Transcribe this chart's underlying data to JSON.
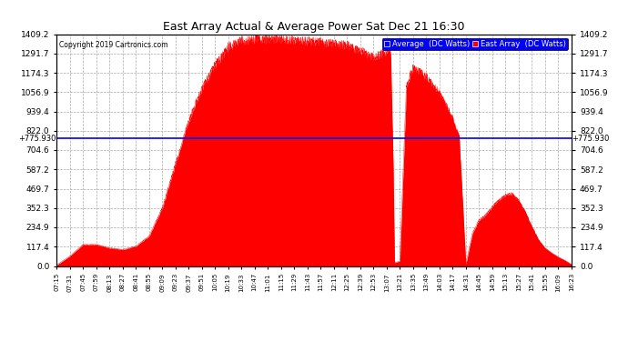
{
  "title": "East Array Actual & Average Power Sat Dec 21 16:30",
  "copyright": "Copyright 2019 Cartronics.com",
  "avg_value": 775.93,
  "avg_label": "+775.930",
  "y_ticks": [
    0.0,
    117.4,
    234.9,
    352.3,
    469.7,
    587.2,
    704.6,
    822.0,
    939.4,
    1056.9,
    1174.3,
    1291.7,
    1409.2
  ],
  "ymax": 1409.2,
  "legend_avg_label": "Average  (DC Watts)",
  "legend_east_label": "East Array  (DC Watts)",
  "legend_avg_color": "#0000ff",
  "legend_east_color": "#ff0000",
  "bg_color": "#ffffff",
  "plot_bg_color": "#ffffff",
  "grid_color": "#aaaaaa",
  "fill_color": "#ff0000",
  "line_color": "#ff0000",
  "avg_line_color": "#0000ff",
  "x_labels": [
    "07:15",
    "07:31",
    "07:45",
    "07:59",
    "08:13",
    "08:27",
    "08:41",
    "08:55",
    "09:09",
    "09:23",
    "09:37",
    "09:51",
    "10:05",
    "10:19",
    "10:33",
    "10:47",
    "11:01",
    "11:15",
    "11:29",
    "11:43",
    "11:57",
    "12:11",
    "12:25",
    "12:39",
    "12:53",
    "13:07",
    "13:21",
    "13:35",
    "13:49",
    "14:03",
    "14:17",
    "14:31",
    "14:45",
    "14:59",
    "15:13",
    "15:27",
    "15:41",
    "15:55",
    "16:09",
    "16:23"
  ],
  "curve_pts": [
    [
      0,
      5
    ],
    [
      1,
      60
    ],
    [
      2,
      130
    ],
    [
      3,
      130
    ],
    [
      4,
      110
    ],
    [
      5,
      100
    ],
    [
      6,
      120
    ],
    [
      7,
      180
    ],
    [
      8,
      350
    ],
    [
      9,
      620
    ],
    [
      10,
      880
    ],
    [
      11,
      1080
    ],
    [
      12,
      1220
    ],
    [
      13,
      1330
    ],
    [
      14,
      1370
    ],
    [
      15,
      1380
    ],
    [
      16,
      1380
    ],
    [
      17,
      1375
    ],
    [
      18,
      1370
    ],
    [
      19,
      1365
    ],
    [
      20,
      1360
    ],
    [
      21,
      1350
    ],
    [
      22,
      1340
    ],
    [
      23,
      1310
    ],
    [
      24,
      1270
    ],
    [
      25,
      1300
    ],
    [
      25.3,
      1320
    ],
    [
      25.5,
      600
    ],
    [
      25.6,
      20
    ],
    [
      26,
      30
    ],
    [
      26.5,
      1100
    ],
    [
      27,
      1200
    ],
    [
      27.5,
      1180
    ],
    [
      28,
      1150
    ],
    [
      28.5,
      1100
    ],
    [
      29,
      1050
    ],
    [
      29.5,
      980
    ],
    [
      30,
      900
    ],
    [
      30.5,
      780
    ],
    [
      31,
      10
    ],
    [
      31.5,
      200
    ],
    [
      32,
      280
    ],
    [
      32.5,
      310
    ],
    [
      33,
      360
    ],
    [
      33.5,
      400
    ],
    [
      34,
      430
    ],
    [
      34.5,
      440
    ],
    [
      35,
      400
    ],
    [
      35.5,
      330
    ],
    [
      36,
      240
    ],
    [
      36.5,
      160
    ],
    [
      37,
      110
    ],
    [
      37.5,
      80
    ],
    [
      38,
      55
    ],
    [
      38.5,
      35
    ],
    [
      39,
      10
    ]
  ]
}
